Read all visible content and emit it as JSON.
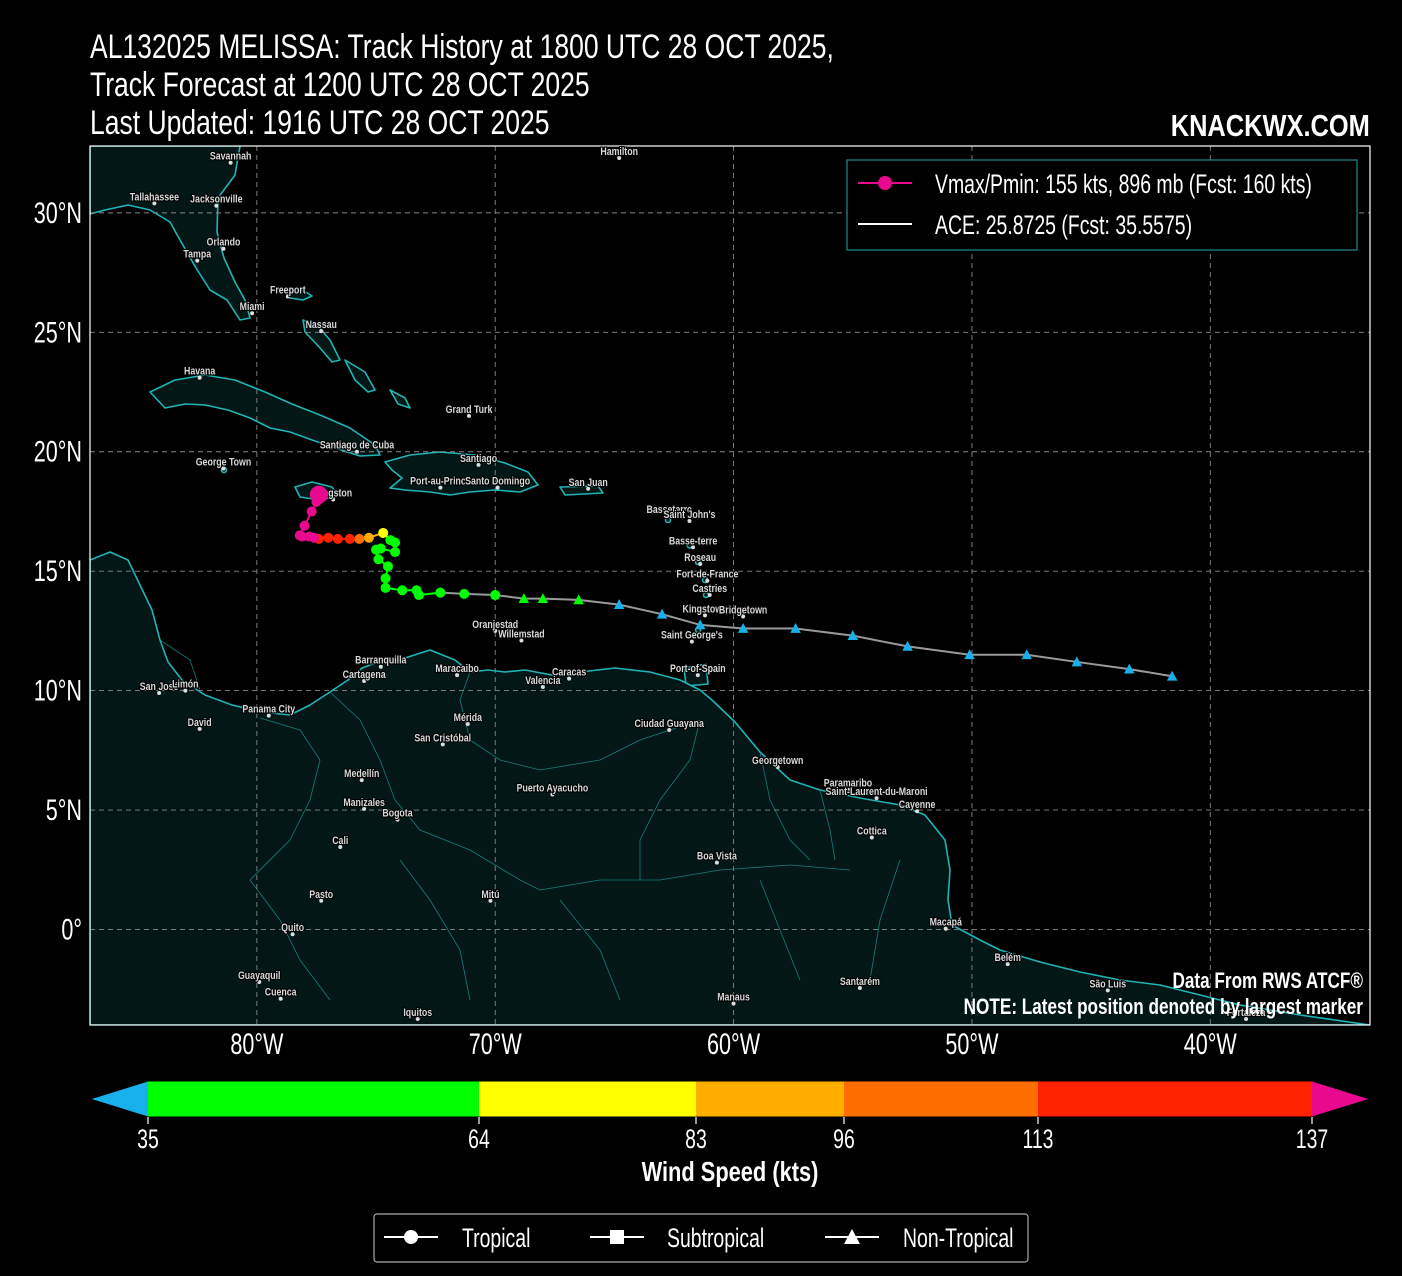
{
  "title": {
    "line1": "AL132025 MELISSA: Track History at 1800 UTC 28 OCT 2025,",
    "line2": "Track Forecast at 1200 UTC 28 OCT 2025",
    "line3": "Last Updated: 1916 UTC 28 OCT 2025"
  },
  "brand": "KNACKWX.COM",
  "legend": {
    "vmax_label": "Vmax/Pmin: 155 kts, 896 mb (Fcst: 160 kts)",
    "ace_label": "ACE: 25.8725 (Fcst: 35.5575)"
  },
  "footer_notes": {
    "source": "Data From RWS ATCF®",
    "note": "NOTE: Latest position denoted by largest marker"
  },
  "axes": {
    "lon_ticks": [
      {
        "lon": -80,
        "label": "80°W"
      },
      {
        "lon": -70,
        "label": "70°W"
      },
      {
        "lon": -60,
        "label": "60°W"
      },
      {
        "lon": -50,
        "label": "50°W"
      },
      {
        "lon": -40,
        "label": "40°W"
      }
    ],
    "lat_ticks": [
      {
        "lat": 30,
        "label": "30°N"
      },
      {
        "lat": 25,
        "label": "25°N"
      },
      {
        "lat": 20,
        "label": "20°N"
      },
      {
        "lat": 15,
        "label": "15°N"
      },
      {
        "lat": 10,
        "label": "10°N"
      },
      {
        "lat": 5,
        "label": "5°N"
      },
      {
        "lat": 0,
        "label": "0°"
      }
    ],
    "lon_range": [
      -87,
      -33.3
    ],
    "lat_range": [
      -4,
      32.8
    ]
  },
  "colors": {
    "background": "#000000",
    "land": "#021716",
    "coast": "#1fb5b5",
    "track_forecast": "#9a9a9a",
    "td": "#17b0ea",
    "ts": "#00ff00",
    "cat1": "#ffff00",
    "cat2": "#ffae00",
    "cat3": "#ff6e00",
    "cat4": "#ff2200",
    "cat5": "#e8098f"
  },
  "colorbar": {
    "ticks": [
      "35",
      "64",
      "83",
      "96",
      "113",
      "137"
    ],
    "label": "Wind Speed (kts)"
  },
  "type_legend": {
    "tropical": "Tropical",
    "subtropical": "Subtropical",
    "nontropical": "Non-Tropical"
  },
  "cities": [
    {
      "name": "Savannah",
      "lon": -81.1,
      "lat": 32.1
    },
    {
      "name": "Hamilton",
      "lon": -64.8,
      "lat": 32.3
    },
    {
      "name": "Tallahassee",
      "lon": -84.3,
      "lat": 30.4
    },
    {
      "name": "Jacksonville",
      "lon": -81.7,
      "lat": 30.3
    },
    {
      "name": "Orlando",
      "lon": -81.4,
      "lat": 28.5
    },
    {
      "name": "Tampa",
      "lon": -82.5,
      "lat": 28.0
    },
    {
      "name": "Freeport",
      "lon": -78.7,
      "lat": 26.5
    },
    {
      "name": "Miami",
      "lon": -80.2,
      "lat": 25.8
    },
    {
      "name": "Nassau",
      "lon": -77.3,
      "lat": 25.05
    },
    {
      "name": "Havana",
      "lon": -82.4,
      "lat": 23.1
    },
    {
      "name": "Grand Turk",
      "lon": -71.1,
      "lat": 21.5
    },
    {
      "name": "Santiago de Cuba",
      "lon": -75.8,
      "lat": 20.0
    },
    {
      "name": "George Town",
      "lon": -81.4,
      "lat": 19.3
    },
    {
      "name": "Santiago",
      "lon": -70.7,
      "lat": 19.45
    },
    {
      "name": "Port-au-Prince",
      "lon": -72.3,
      "lat": 18.5
    },
    {
      "name": "Santo Domingo",
      "lon": -69.9,
      "lat": 18.5
    },
    {
      "name": "San Juan",
      "lon": -66.1,
      "lat": 18.45
    },
    {
      "name": "Kingston",
      "lon": -76.8,
      "lat": 18.0
    },
    {
      "name": "Basseterre",
      "lon": -62.7,
      "lat": 17.3
    },
    {
      "name": "Saint John's",
      "lon": -61.85,
      "lat": 17.1
    },
    {
      "name": "Basse-terre",
      "lon": -61.7,
      "lat": 16.0
    },
    {
      "name": "Roseau",
      "lon": -61.4,
      "lat": 15.3
    },
    {
      "name": "Fort-de-France",
      "lon": -61.1,
      "lat": 14.6
    },
    {
      "name": "Castries",
      "lon": -61.0,
      "lat": 14.0
    },
    {
      "name": "Kingstown",
      "lon": -61.2,
      "lat": 13.15
    },
    {
      "name": "Bridgetown",
      "lon": -59.6,
      "lat": 13.1
    },
    {
      "name": "Oranjestad",
      "lon": -70.0,
      "lat": 12.5
    },
    {
      "name": "Willemstad",
      "lon": -68.9,
      "lat": 12.1
    },
    {
      "name": "Saint George's",
      "lon": -61.75,
      "lat": 12.05
    },
    {
      "name": "Barranquilla",
      "lon": -74.8,
      "lat": 11.0
    },
    {
      "name": "Cartagena",
      "lon": -75.5,
      "lat": 10.4
    },
    {
      "name": "Maracaibo",
      "lon": -71.6,
      "lat": 10.65
    },
    {
      "name": "Caracas",
      "lon": -66.9,
      "lat": 10.5
    },
    {
      "name": "Valencia",
      "lon": -68.0,
      "lat": 10.15
    },
    {
      "name": "Port-of-Spain",
      "lon": -61.5,
      "lat": 10.65
    },
    {
      "name": "San José",
      "lon": -84.1,
      "lat": 9.9
    },
    {
      "name": "Limón",
      "lon": -83.0,
      "lat": 10.0
    },
    {
      "name": "Panama City",
      "lon": -79.5,
      "lat": 8.95
    },
    {
      "name": "David",
      "lon": -82.4,
      "lat": 8.4
    },
    {
      "name": "Mérida",
      "lon": -71.15,
      "lat": 8.6
    },
    {
      "name": "San Cristóbal",
      "lon": -72.2,
      "lat": 7.75
    },
    {
      "name": "Ciudad Guayana",
      "lon": -62.7,
      "lat": 8.35
    },
    {
      "name": "Georgetown",
      "lon": -58.15,
      "lat": 6.8
    },
    {
      "name": "Paramaribo",
      "lon": -55.2,
      "lat": 5.85
    },
    {
      "name": "Saint-Laurent-du-Maroni",
      "lon": -54.0,
      "lat": 5.5
    },
    {
      "name": "Cayenne",
      "lon": -52.3,
      "lat": 4.95
    },
    {
      "name": "Medellín",
      "lon": -75.6,
      "lat": 6.25
    },
    {
      "name": "Puerto Ayacucho",
      "lon": -67.6,
      "lat": 5.65
    },
    {
      "name": "Manizales",
      "lon": -75.5,
      "lat": 5.05
    },
    {
      "name": "Bogota",
      "lon": -74.1,
      "lat": 4.6
    },
    {
      "name": "Cottica",
      "lon": -54.2,
      "lat": 3.85
    },
    {
      "name": "Cali",
      "lon": -76.5,
      "lat": 3.45
    },
    {
      "name": "Boa Vista",
      "lon": -60.7,
      "lat": 2.8
    },
    {
      "name": "Pasto",
      "lon": -77.3,
      "lat": 1.2
    },
    {
      "name": "Mitú",
      "lon": -70.2,
      "lat": 1.2
    },
    {
      "name": "Quito",
      "lon": -78.5,
      "lat": -0.2
    },
    {
      "name": "Macapá",
      "lon": -51.1,
      "lat": 0.03
    },
    {
      "name": "Belém",
      "lon": -48.5,
      "lat": -1.45
    },
    {
      "name": "Guayaquil",
      "lon": -79.9,
      "lat": -2.2
    },
    {
      "name": "Santarém",
      "lon": -54.7,
      "lat": -2.45
    },
    {
      "name": "São Luís",
      "lon": -44.3,
      "lat": -2.55
    },
    {
      "name": "Cuenca",
      "lon": -79.0,
      "lat": -2.9
    },
    {
      "name": "Manaus",
      "lon": -60.0,
      "lat": -3.1
    },
    {
      "name": "Iquitos",
      "lon": -73.25,
      "lat": -3.75
    },
    {
      "name": "Fortaleza",
      "lon": -38.5,
      "lat": -3.75
    }
  ],
  "track_history": [
    {
      "lon": -72.3,
      "lat": 14.1,
      "kt": 45
    },
    {
      "lon": -73.2,
      "lat": 14.0,
      "kt": 45
    },
    {
      "lon": -73.3,
      "lat": 14.2,
      "kt": 45
    },
    {
      "lon": -73.9,
      "lat": 14.2,
      "kt": 45
    },
    {
      "lon": -74.6,
      "lat": 14.3,
      "kt": 45
    },
    {
      "lon": -74.6,
      "lat": 14.7,
      "kt": 45
    },
    {
      "lon": -74.5,
      "lat": 15.2,
      "kt": 50
    },
    {
      "lon": -74.9,
      "lat": 15.5,
      "kt": 50
    },
    {
      "lon": -75.0,
      "lat": 15.9,
      "kt": 50
    },
    {
      "lon": -74.8,
      "lat": 15.95,
      "kt": 50
    },
    {
      "lon": -74.2,
      "lat": 15.8,
      "kt": 55
    },
    {
      "lon": -74.2,
      "lat": 16.2,
      "kt": 60
    },
    {
      "lon": -74.4,
      "lat": 16.3,
      "kt": 60
    },
    {
      "lon": -74.7,
      "lat": 16.6,
      "kt": 70
    },
    {
      "lon": -75.3,
      "lat": 16.4,
      "kt": 85
    },
    {
      "lon": -75.7,
      "lat": 16.35,
      "kt": 100
    },
    {
      "lon": -76.1,
      "lat": 16.35,
      "kt": 115
    },
    {
      "lon": -76.6,
      "lat": 16.35,
      "kt": 120
    },
    {
      "lon": -77.0,
      "lat": 16.4,
      "kt": 120
    },
    {
      "lon": -77.4,
      "lat": 16.35,
      "kt": 125
    },
    {
      "lon": -77.6,
      "lat": 16.4,
      "kt": 140
    },
    {
      "lon": -77.8,
      "lat": 16.45,
      "kt": 150
    },
    {
      "lon": -78.1,
      "lat": 16.45,
      "kt": 150
    },
    {
      "lon": -78.2,
      "lat": 16.5,
      "kt": 150
    },
    {
      "lon": -78.0,
      "lat": 16.9,
      "kt": 150
    },
    {
      "lon": -77.7,
      "lat": 17.5,
      "kt": 150
    },
    {
      "lon": -77.5,
      "lat": 17.9,
      "kt": 155
    },
    {
      "lon": -77.4,
      "lat": 18.2,
      "kt": 155
    }
  ],
  "track_forecast": [
    {
      "lon": -41.6,
      "lat": 10.6,
      "kt": 30,
      "type": "nontropical"
    },
    {
      "lon": -43.4,
      "lat": 10.9,
      "kt": 30,
      "type": "nontropical"
    },
    {
      "lon": -45.6,
      "lat": 11.2,
      "kt": 30,
      "type": "nontropical"
    },
    {
      "lon": -47.7,
      "lat": 11.5,
      "kt": 30,
      "type": "nontropical"
    },
    {
      "lon": -50.1,
      "lat": 11.5,
      "kt": 30,
      "type": "nontropical"
    },
    {
      "lon": -52.7,
      "lat": 11.85,
      "kt": 30,
      "type": "nontropical"
    },
    {
      "lon": -55.0,
      "lat": 12.3,
      "kt": 30,
      "type": "nontropical"
    },
    {
      "lon": -57.4,
      "lat": 12.6,
      "kt": 30,
      "type": "nontropical"
    },
    {
      "lon": -59.6,
      "lat": 12.6,
      "kt": 30,
      "type": "nontropical"
    },
    {
      "lon": -61.4,
      "lat": 12.75,
      "kt": 30,
      "type": "nontropical"
    },
    {
      "lon": -63.0,
      "lat": 13.2,
      "kt": 30,
      "type": "nontropical"
    },
    {
      "lon": -64.8,
      "lat": 13.6,
      "kt": 30,
      "type": "nontropical"
    },
    {
      "lon": -66.5,
      "lat": 13.8,
      "kt": 40,
      "type": "nontropical"
    },
    {
      "lon": -68.0,
      "lat": 13.85,
      "kt": 40,
      "type": "nontropical"
    },
    {
      "lon": -68.8,
      "lat": 13.85,
      "kt": 40,
      "type": "nontropical"
    },
    {
      "lon": -70.0,
      "lat": 14.0,
      "kt": 45,
      "type": "tropical"
    },
    {
      "lon": -71.3,
      "lat": 14.05,
      "kt": 45,
      "type": "tropical"
    },
    {
      "lon": -72.3,
      "lat": 14.1,
      "kt": 45,
      "type": "tropical"
    }
  ]
}
